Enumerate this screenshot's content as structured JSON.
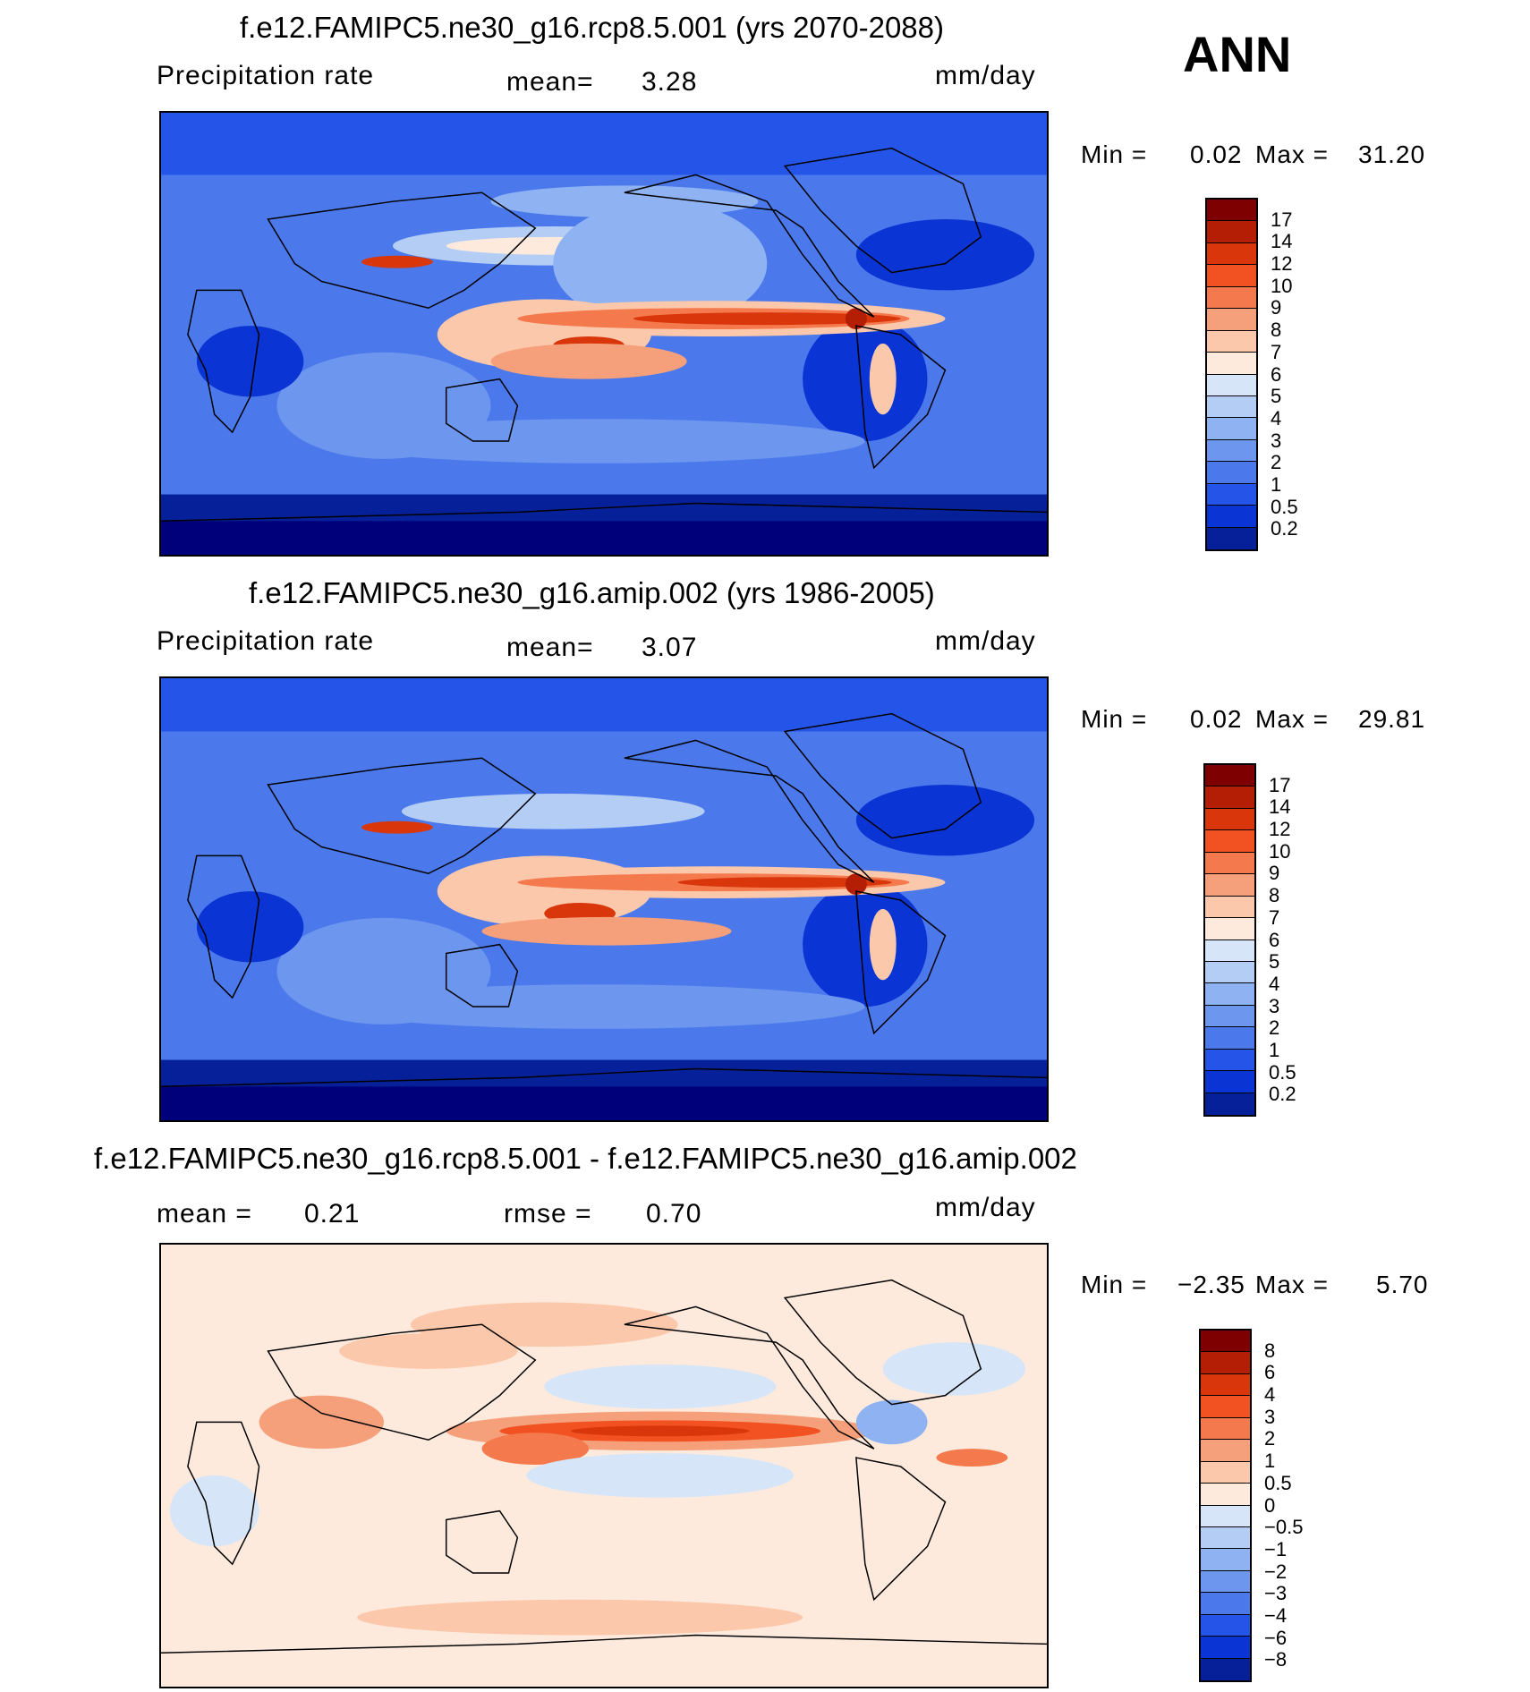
{
  "header": {
    "season": "ANN"
  },
  "panels": [
    {
      "title": "f.e12.FAMIPC5.ne30_g16.rcp8.5.001 (yrs 2070-2088)",
      "left_label": "Precipitation rate",
      "center_label": "mean=",
      "center_value": "3.28",
      "units": "mm/day",
      "min_label": "Min =",
      "min_value": "0.02",
      "max_label": "Max =",
      "max_value": "31.20",
      "colorbar_labels": [
        "17",
        "14",
        "12",
        "10",
        "9",
        "8",
        "7",
        "6",
        "5",
        "4",
        "3",
        "2",
        "1",
        "0.5",
        "0.2"
      ],
      "colorbar_colors": [
        "#7f0000",
        "#b31e05",
        "#d9360b",
        "#f25222",
        "#f47a4d",
        "#f5a07a",
        "#fbc8ab",
        "#fdeadc",
        "#d6e6f8",
        "#b3cdf5",
        "#8fb3f2",
        "#6d96ef",
        "#4b79eb",
        "#2454e8",
        "#0b34d4",
        "#06209a"
      ]
    },
    {
      "title": "f.e12.FAMIPC5.ne30_g16.amip.002 (yrs 1986-2005)",
      "left_label": "Precipitation rate",
      "center_label": "mean=",
      "center_value": "3.07",
      "units": "mm/day",
      "min_label": "Min =",
      "min_value": "0.02",
      "max_label": "Max =",
      "max_value": "29.81",
      "colorbar_labels": [
        "17",
        "14",
        "12",
        "10",
        "9",
        "8",
        "7",
        "6",
        "5",
        "4",
        "3",
        "2",
        "1",
        "0.5",
        "0.2"
      ],
      "colorbar_colors": [
        "#7f0000",
        "#b31e05",
        "#d9360b",
        "#f25222",
        "#f47a4d",
        "#f5a07a",
        "#fbc8ab",
        "#fdeadc",
        "#d6e6f8",
        "#b3cdf5",
        "#8fb3f2",
        "#6d96ef",
        "#4b79eb",
        "#2454e8",
        "#0b34d4",
        "#06209a"
      ]
    },
    {
      "title": "f.e12.FAMIPC5.ne30_g16.rcp8.5.001 - f.e12.FAMIPC5.ne30_g16.amip.002",
      "left_label": "mean =",
      "left_value": "0.21",
      "center_label": "rmse =",
      "center_value": "0.70",
      "units": "mm/day",
      "min_label": "Min =",
      "min_value": "−2.35",
      "max_label": "Max =",
      "max_value": "5.70",
      "colorbar_labels": [
        "8",
        "6",
        "4",
        "3",
        "2",
        "1",
        "0.5",
        "0",
        "−0.5",
        "−1",
        "−2",
        "−3",
        "−4",
        "−6",
        "−8"
      ],
      "colorbar_colors": [
        "#7f0000",
        "#b31e05",
        "#d9360b",
        "#f25222",
        "#f47a4d",
        "#f5a07a",
        "#fbc8ab",
        "#fdeadc",
        "#d6e6f8",
        "#b3cdf5",
        "#8fb3f2",
        "#6d96ef",
        "#4b79eb",
        "#2454e8",
        "#0b34d4",
        "#06209a"
      ]
    }
  ]
}
